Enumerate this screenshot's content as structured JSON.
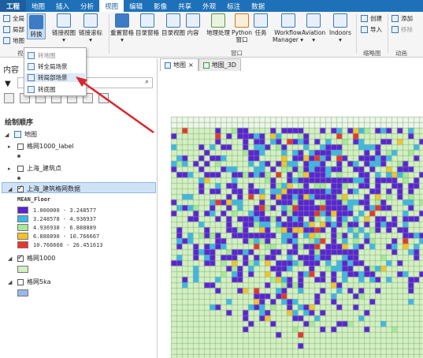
{
  "tabs": [
    "工程",
    "地图",
    "插入",
    "分析",
    "视图",
    "编辑",
    "影像",
    "共享",
    "外观",
    "标注",
    "数据"
  ],
  "active_tab": "视图",
  "ribbon": {
    "left_small": [
      "全局",
      "局部",
      "地图"
    ],
    "convert": "转换",
    "buttons": [
      {
        "label": "链接视图",
        "sub": "▾"
      },
      {
        "label": "链接滚标",
        "sub": "▾"
      },
      {
        "label": "重置窗格",
        "sub": "▾"
      },
      {
        "label": "目录窗格",
        "sub": ""
      },
      {
        "label": "目录视图",
        "sub": ""
      },
      {
        "label": "内容",
        "sub": ""
      },
      {
        "label": "地理处理",
        "sub": ""
      },
      {
        "label": "Python",
        "sub": "窗口"
      },
      {
        "label": "任务",
        "sub": ""
      },
      {
        "label": "Workflow",
        "sub": "Manager ▾"
      },
      {
        "label": "Aviation",
        "sub": "▾"
      },
      {
        "label": "Indoors",
        "sub": "▾"
      }
    ],
    "right_small": [
      {
        "label": "创建"
      },
      {
        "label": "添加"
      },
      {
        "label": "导入"
      },
      {
        "label": "移除"
      }
    ],
    "group_labels": {
      "view": "视图",
      "window": "窗口",
      "thumbnail": "缩略图",
      "animation": "动画"
    }
  },
  "convert_menu": {
    "items": [
      "转地图",
      "转全局场景",
      "转局部场景",
      "转底图"
    ]
  },
  "contents": {
    "title": "内容",
    "drawing_order": "绘制顺序",
    "map_name": "地图",
    "layers": [
      {
        "name": "格网1000_label",
        "checked": false
      },
      {
        "name": "上海_建筑点",
        "checked": false
      },
      {
        "name": "上海_建筑格网数据",
        "checked": true
      },
      {
        "name": "格网1000",
        "checked": true
      },
      {
        "name": "格网5ka",
        "checked": false
      }
    ],
    "legend_field": "MEAN_Floor",
    "legend": [
      {
        "label": "1.000000 - 3.248577",
        "color": "#5b22d6"
      },
      {
        "label": "3.248578 - 4.936937",
        "color": "#3fb6e8"
      },
      {
        "label": "4.936938 - 6.888889",
        "color": "#a8e89a"
      },
      {
        "label": "6.888890 - 10.766667",
        "color": "#f5c22a"
      },
      {
        "label": "10.766668 - 26.451613",
        "color": "#e8352b"
      }
    ],
    "layer4_swatch": "#d4f0c2",
    "layer5_swatch": "#9ab8e8"
  },
  "map_tabs": [
    "地图",
    "地图_3D"
  ]
}
